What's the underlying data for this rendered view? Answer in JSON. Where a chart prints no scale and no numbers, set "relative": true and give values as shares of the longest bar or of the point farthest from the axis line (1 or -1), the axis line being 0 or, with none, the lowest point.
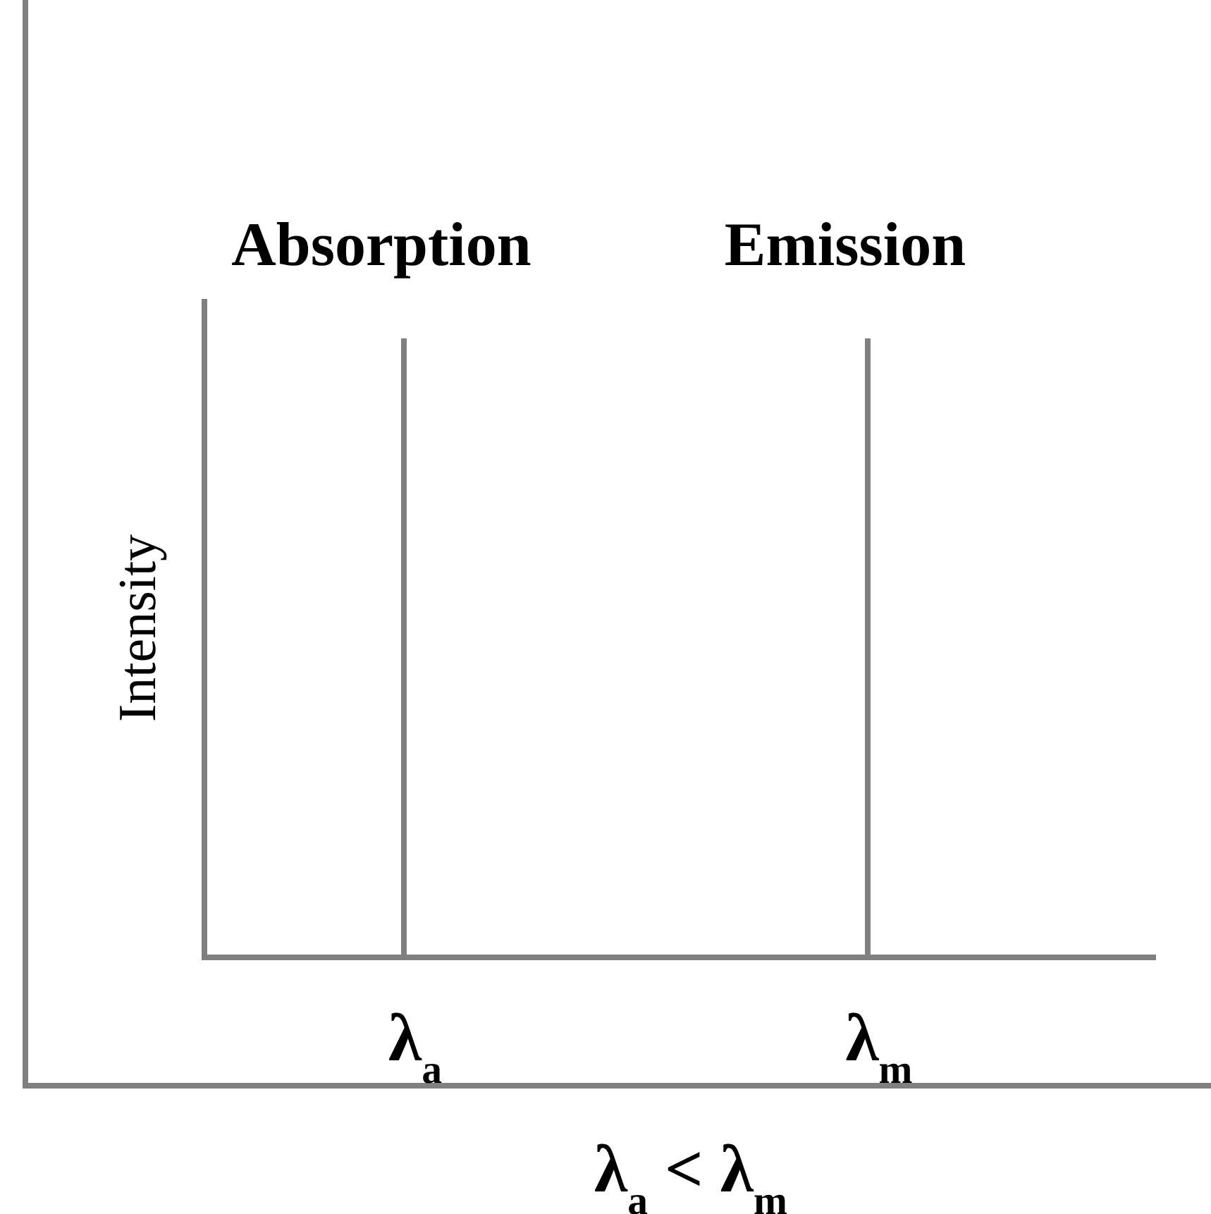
{
  "chart_data": {
    "type": "bar",
    "relative": true,
    "categories": [
      "λ$_{a}$",
      "λ$_{m}$"
    ],
    "xlabel": "λ$_{a}$ < λ$_{m}$",
    "ylabel": "Intensity",
    "series": [
      {
        "name": "Absorption",
        "color": "#808080",
        "values": [
          1,
          null
        ]
      },
      {
        "name": "Emission",
        "color": "#808080",
        "values": [
          null,
          1
        ]
      }
    ]
  }
}
